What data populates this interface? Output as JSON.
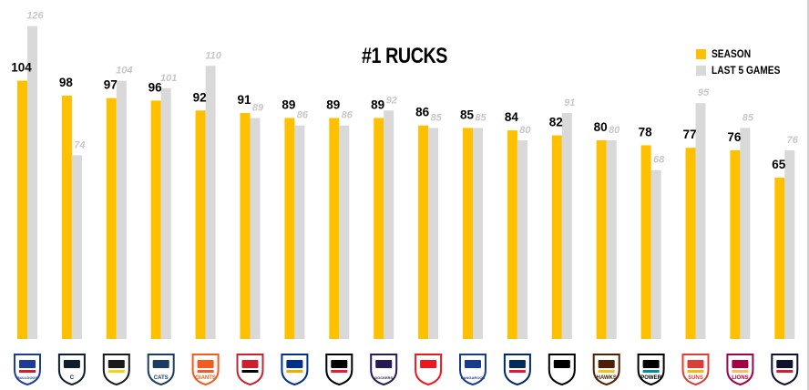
{
  "chart_data": {
    "type": "bar",
    "title": "#1 RUCKS",
    "xlabel": "",
    "ylabel": "",
    "ylim": [
      0,
      130
    ],
    "grid": false,
    "legend_position": "top-right",
    "categories": [
      "Western Bulldogs",
      "Carlton",
      "Richmond",
      "Geelong Cats",
      "GWS Giants",
      "Essendon",
      "West Coast Eagles",
      "St Kilda",
      "Fremantle Dockers",
      "Sydney Swans",
      "North Melbourne Kangaroos",
      "Adelaide",
      "Collingwood",
      "Hawthorn Hawks",
      "Port Adelaide Power",
      "Gold Coast Suns",
      "Brisbane Lions",
      "Melbourne"
    ],
    "series": [
      {
        "name": "SEASON",
        "color": "#FFC000",
        "values": [
          104,
          98,
          97,
          96,
          92,
          91,
          89,
          89,
          89,
          86,
          85,
          84,
          82,
          80,
          78,
          77,
          76,
          65
        ]
      },
      {
        "name": "LAST 5 GAMES",
        "color": "#D9D9D9",
        "values": [
          126,
          74,
          104,
          101,
          110,
          89,
          86,
          86,
          92,
          85,
          85,
          80,
          91,
          80,
          68,
          95,
          85,
          76
        ]
      }
    ]
  },
  "logos": [
    {
      "icon": "bulldogs-logo",
      "text": "BULLDOGS",
      "color": "#1E3C96",
      "accent": "#D21E28"
    },
    {
      "icon": "carlton-logo",
      "text": "C",
      "color": "#0E1E2D",
      "accent": "#ffffff"
    },
    {
      "icon": "richmond-logo",
      "text": "",
      "color": "#1a1a1a",
      "accent": "#FFD200"
    },
    {
      "icon": "geelong-logo",
      "text": "CATS",
      "color": "#1C3C63",
      "accent": "#ffffff"
    },
    {
      "icon": "gws-logo",
      "text": "GIANTS",
      "color": "#F15C22",
      "accent": "#F15C22"
    },
    {
      "icon": "essendon-logo",
      "text": "",
      "color": "#CC2031",
      "accent": "#000000"
    },
    {
      "icon": "westcoast-logo",
      "text": "",
      "color": "#003087",
      "accent": "#F2A900"
    },
    {
      "icon": "stkilda-logo",
      "text": "",
      "color": "#000000",
      "accent": "#ED1B2F"
    },
    {
      "icon": "fremantle-logo",
      "text": "DOCKERS",
      "color": "#2A1A54",
      "accent": "#ffffff"
    },
    {
      "icon": "sydney-logo",
      "text": "",
      "color": "#ED171F",
      "accent": "#ffffff"
    },
    {
      "icon": "northmelbourne-logo",
      "text": "KANGAROOS",
      "color": "#1A3B8B",
      "accent": "#ffffff"
    },
    {
      "icon": "adelaide-logo",
      "text": "",
      "color": "#002B5C",
      "accent": "#E21937"
    },
    {
      "icon": "collingwood-logo",
      "text": "",
      "color": "#000000",
      "accent": "#ffffff"
    },
    {
      "icon": "hawthorn-logo",
      "text": "HAWKS",
      "color": "#4D2004",
      "accent": "#FBBF15"
    },
    {
      "icon": "portadelaide-logo",
      "text": "POWER",
      "color": "#000000",
      "accent": "#008AAB"
    },
    {
      "icon": "goldcoast-logo",
      "text": "SUNS",
      "color": "#D93E39",
      "accent": "#F6BD00"
    },
    {
      "icon": "brisbane-logo",
      "text": "LIONS",
      "color": "#A30046",
      "accent": "#FDBE57"
    },
    {
      "icon": "melbourne-logo",
      "text": "",
      "color": "#0F1131",
      "accent": "#CC2031"
    }
  ]
}
